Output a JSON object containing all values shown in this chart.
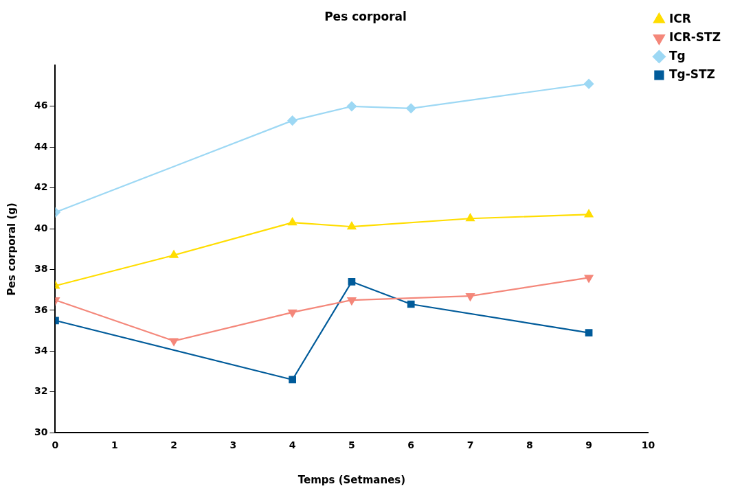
{
  "chart_data": {
    "type": "line",
    "title": "Pes corporal",
    "xlabel": "Temps (Setmanes)",
    "ylabel": "Pes corporal (g)",
    "xlim": [
      0,
      10
    ],
    "xticks": [
      0,
      1,
      2,
      3,
      4,
      5,
      6,
      7,
      8,
      9,
      10
    ],
    "ylim": [
      30,
      48
    ],
    "yticks": [
      30,
      32,
      34,
      36,
      38,
      40,
      42,
      44,
      46
    ],
    "grid": false,
    "legend": "top right",
    "series": [
      {
        "name": "ICR",
        "color": "#ffdd00",
        "marker": "triangle",
        "x": [
          0,
          2,
          4,
          5,
          7,
          9
        ],
        "values": [
          37.2,
          38.7,
          40.3,
          40.1,
          40.5,
          40.7
        ]
      },
      {
        "name": "ICR-STZ",
        "color": "#f4877a",
        "marker": "triangle-down",
        "x": [
          0,
          2,
          4,
          5,
          7,
          9
        ],
        "values": [
          36.5,
          34.5,
          35.9,
          36.5,
          36.7,
          37.6
        ]
      },
      {
        "name": "Tg",
        "color": "#9dd8f4",
        "marker": "diamond",
        "x": [
          0,
          4,
          5,
          6,
          9
        ],
        "values": [
          40.8,
          45.3,
          46.0,
          45.9,
          47.1
        ]
      },
      {
        "name": "Tg-STZ",
        "color": "#005b9a",
        "marker": "square",
        "x": [
          0,
          4,
          5,
          6,
          9
        ],
        "values": [
          35.5,
          32.6,
          37.4,
          36.3,
          34.9
        ]
      }
    ]
  }
}
